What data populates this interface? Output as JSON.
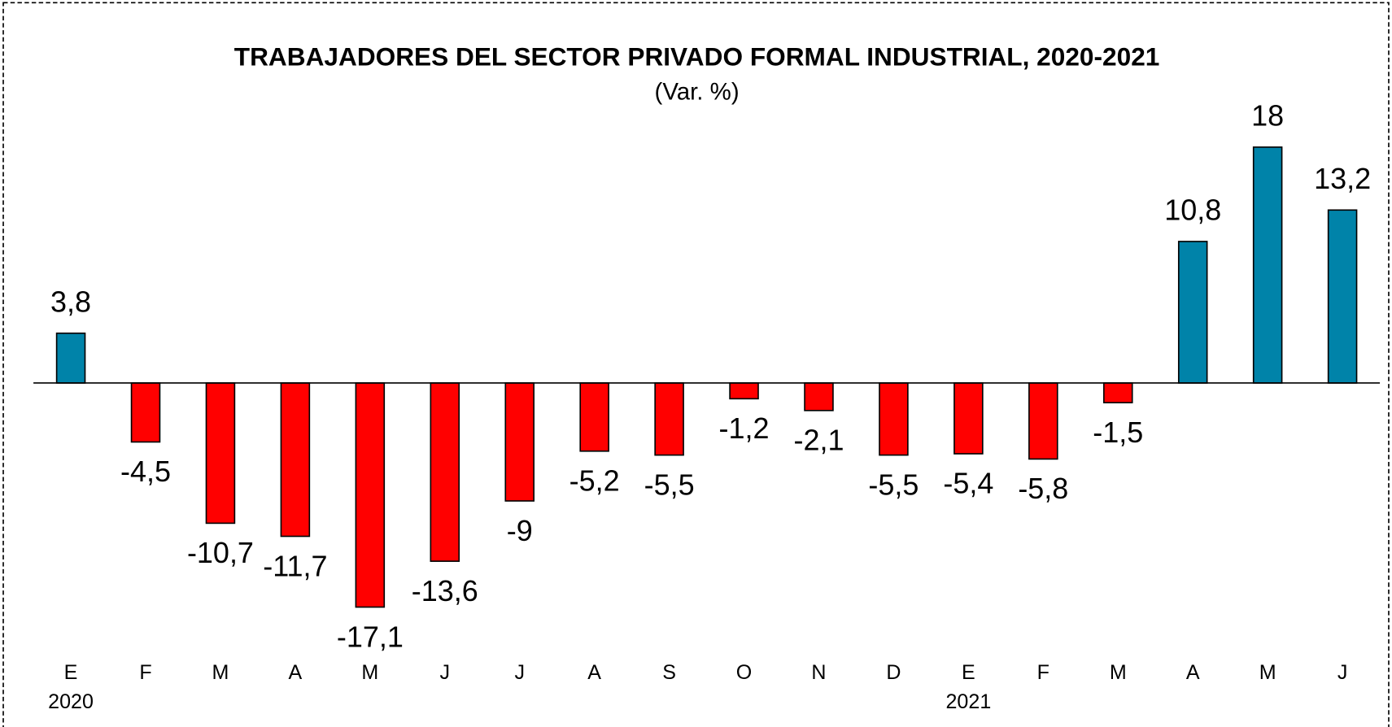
{
  "chart_data": {
    "type": "bar",
    "title": "TRABAJADORES DEL SECTOR PRIVADO FORMAL INDUSTRIAL, 2020-2021",
    "subtitle": "(Var. %)",
    "categories": [
      "E",
      "F",
      "M",
      "A",
      "M",
      "J",
      "J",
      "A",
      "S",
      "O",
      "N",
      "D",
      "E",
      "F",
      "M",
      "A",
      "M",
      "J"
    ],
    "category_years": [
      "2020",
      null,
      null,
      null,
      null,
      null,
      null,
      null,
      null,
      null,
      null,
      null,
      "2021",
      null,
      null,
      null,
      null,
      null
    ],
    "values": [
      3.8,
      -4.5,
      -10.7,
      -11.7,
      -17.1,
      -13.6,
      -9,
      -5.2,
      -5.5,
      -1.2,
      -2.1,
      -5.5,
      -5.4,
      -5.8,
      -1.5,
      10.8,
      18,
      13.2
    ],
    "value_labels": [
      "3,8",
      "-4,5",
      "-10,7",
      "-11,7",
      "-17,1",
      "-13,6",
      "-9",
      "-5,2",
      "-5,5",
      "-1,2",
      "-2,1",
      "-5,5",
      "-5,4",
      "-5,8",
      "-1,5",
      "10,8",
      "18",
      "13,2"
    ],
    "positive_color": "#0083a9",
    "negative_color": "#ff0000",
    "ylim": [
      -20,
      20
    ],
    "grid": false
  }
}
